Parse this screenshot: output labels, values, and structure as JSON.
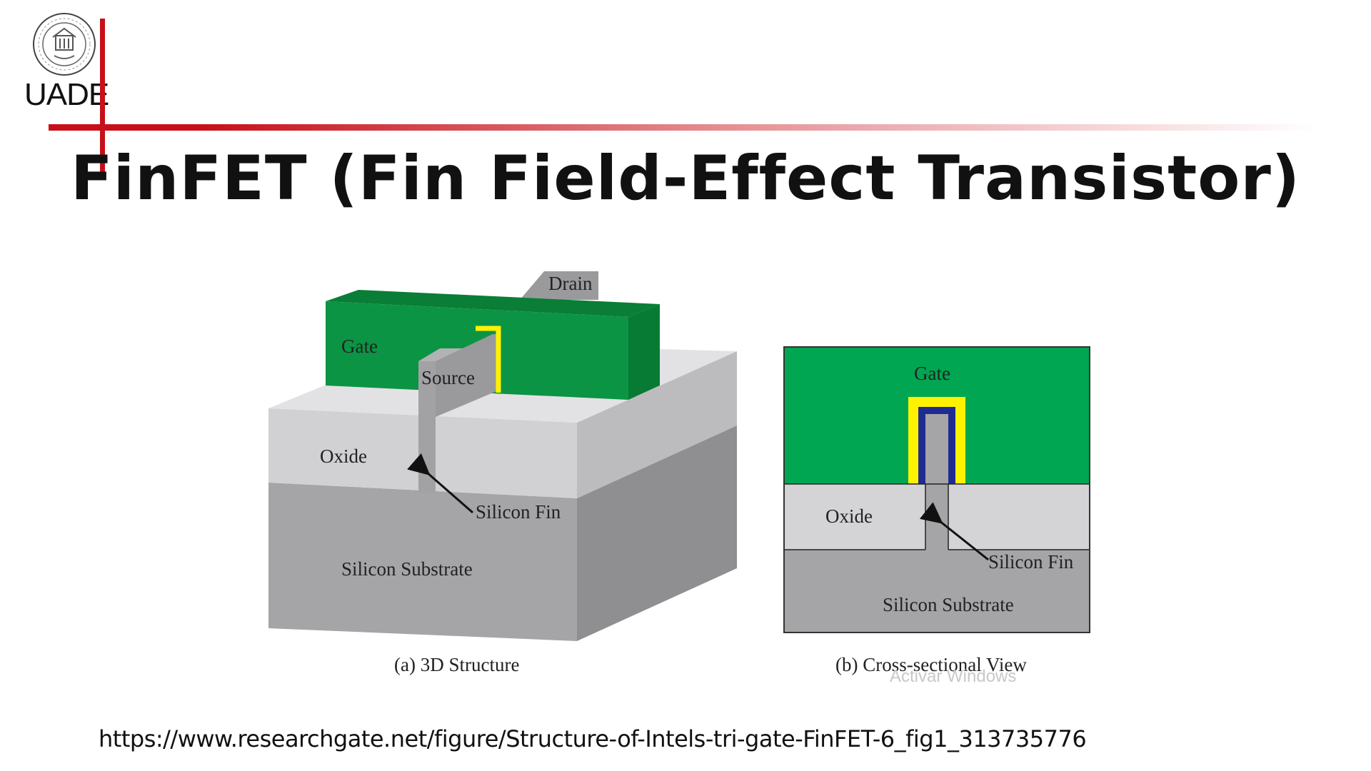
{
  "header": {
    "logo_text": "UADE",
    "logo_icon": "university-seal-icon",
    "title": "FinFET (Fin Field-Effect Transistor)"
  },
  "diagram_3d": {
    "drain": "Drain",
    "gate": "Gate",
    "source": "Source",
    "oxide": "Oxide",
    "silicon_fin": "Silicon Fin",
    "silicon_substrate": "Silicon Substrate",
    "caption": "(a) 3D Structure"
  },
  "diagram_cross": {
    "gate": "Gate",
    "oxide": "Oxide",
    "silicon_fin": "Silicon Fin",
    "silicon_substrate": "Silicon Substrate",
    "caption": "(b) Cross-sectional View"
  },
  "colors": {
    "accent_red": "#c8101a",
    "gate_green": "#0b9444",
    "gate_green_light": "#00a651",
    "oxide_gray": "#d4d4d6",
    "substrate_gray": "#a5a5a7",
    "gate_oxide_yellow": "#fff200",
    "fin_liner_blue": "#1f2c8f"
  },
  "watermark": "Activar Windows",
  "source_url": "https://www.researchgate.net/figure/Structure-of-Intels-tri-gate-FinFET-6_fig1_313735776"
}
